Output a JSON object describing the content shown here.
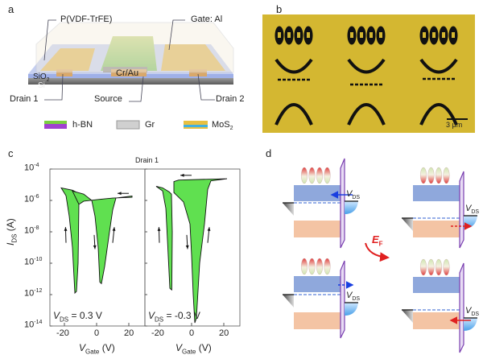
{
  "panels": {
    "a": "a",
    "b": "b",
    "c": "c",
    "d": "d"
  },
  "panel_a": {
    "labels": {
      "polymer": "P(VDF-TrFE)",
      "gate": "Gate: Al",
      "sio2": "SiO",
      "sio2_sub": "2",
      "si": "Si",
      "contact": "Cr/Au",
      "drain1": "Drain 1",
      "source": "Source",
      "drain2": "Drain 2"
    },
    "legend": [
      {
        "name": "h-BN"
      },
      {
        "name": "Gr"
      },
      {
        "name": "MoS",
        "sub": "2"
      }
    ]
  },
  "panel_b": {
    "scale_bar": "3 μm",
    "colors": {
      "background": "#d4b731",
      "pattern": "#111111"
    }
  },
  "chart_data": {
    "type": "line",
    "title": "Drain 1",
    "xlabel": "V_Gate (V)",
    "xlabel_main": "V",
    "xlabel_sub": "Gate",
    "xlabel_unit": " (V)",
    "ylabel_main": "I",
    "ylabel_sub": "DS",
    "ylabel_unit": " (A)",
    "yscale": "log",
    "ylim": [
      1e-14,
      0.0001
    ],
    "xlim": [
      -29,
      30
    ],
    "x_ticks": [
      "-20",
      "0",
      "20"
    ],
    "y_ticks": [
      {
        "b": "10",
        "e": "-4"
      },
      {
        "b": "10",
        "e": "-6"
      },
      {
        "b": "10",
        "e": "-8"
      },
      {
        "b": "10",
        "e": "-10"
      },
      {
        "b": "10",
        "e": "-12"
      },
      {
        "b": "10",
        "e": "-14"
      }
    ],
    "subplots": [
      {
        "annotation_main": "V",
        "annotation_sub": "DS",
        "annotation_val": " = 0.3 V",
        "loops": [
          {
            "name": "left-loop",
            "points_log": [
              [
                -22,
                -5.2
              ],
              [
                -15,
                -5.35
              ],
              [
                -11,
                -5.55
              ],
              [
                -11,
                -6.2
              ],
              [
                -11.5,
                -10
              ],
              [
                -12.5,
                -11.8
              ],
              [
                -13.5,
                -11.9
              ],
              [
                -15,
                -9
              ],
              [
                -17,
                -7
              ],
              [
                -19,
                -5.7
              ]
            ]
          },
          {
            "name": "right-loop",
            "points_log": [
              [
                -11,
                -6.25
              ],
              [
                -8,
                -6.05
              ],
              [
                0,
                -5.95
              ],
              [
                10,
                -5.85
              ],
              [
                22,
                -5.8
              ],
              [
                22,
                -5.72
              ],
              [
                12,
                -5.85
              ],
              [
                10,
                -6.6
              ],
              [
                8,
                -8
              ],
              [
                5,
                -10.2
              ],
              [
                3,
                -11.3
              ],
              [
                2,
                -11.2
              ],
              [
                1,
                -9
              ],
              [
                -1,
                -7
              ],
              [
                -3,
                -6.0
              ],
              [
                -8,
                -5.6
              ],
              [
                -15,
                -5.4
              ]
            ]
          }
        ]
      },
      {
        "annotation_main": "V",
        "annotation_sub": "DS",
        "annotation_val": " = -0.3 V",
        "loops": [
          {
            "name": "left-loop",
            "points_log": [
              [
                -22,
                -5.1
              ],
              [
                -18,
                -5.2
              ],
              [
                -14,
                -5.45
              ],
              [
                -12.5,
                -5.6
              ],
              [
                -12,
                -8
              ],
              [
                -12.3,
                -11.7
              ],
              [
                -13.5,
                -11.6
              ],
              [
                -15,
                -8.5
              ],
              [
                -16,
                -6.5
              ],
              [
                -18,
                -5.4
              ]
            ]
          },
          {
            "name": "right-loop",
            "points_log": [
              [
                -11,
                -5.5
              ],
              [
                -11,
                -4.8
              ],
              [
                -8,
                -4.7
              ],
              [
                10,
                -4.65
              ],
              [
                22,
                -4.62
              ],
              [
                12,
                -4.75
              ],
              [
                10,
                -5.3
              ],
              [
                8,
                -7.5
              ],
              [
                5,
                -10
              ],
              [
                3,
                -13.5
              ],
              [
                2,
                -13.8
              ],
              [
                1,
                -12
              ],
              [
                0,
                -9.5
              ],
              [
                -1,
                -7.5
              ],
              [
                -5,
                -6.1
              ],
              [
                -10,
                -5.6
              ]
            ]
          }
        ]
      }
    ]
  },
  "panel_d": {
    "vds_main": "V",
    "vds_sub": "DS",
    "ef_main": "E",
    "ef_sub": "F",
    "colors": {
      "conduction": "#8fa8dc",
      "valence": "#f4c4a4",
      "electrode": "#7a3fb0",
      "arrow_blue": "#1a3fe0",
      "arrow_red": "#e02020"
    }
  }
}
